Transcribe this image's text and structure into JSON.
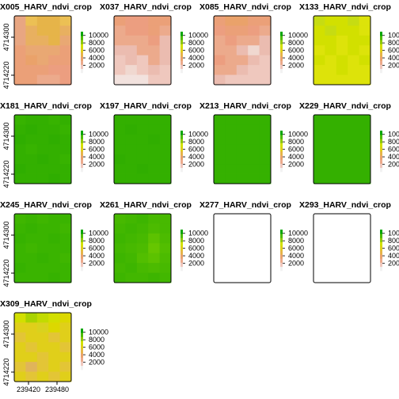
{
  "chart_data": {
    "type": "heatmap",
    "layout": "facet-grid",
    "columns": 4,
    "x_ticks": [
      239420,
      239480
    ],
    "x_tick_labels": [
      "239420",
      "239480"
    ],
    "y_ticks": [
      4714220,
      4714300
    ],
    "y_tick_labels": [
      "4714220",
      "4714300"
    ],
    "legend_ticks": [
      2000,
      4000,
      6000,
      8000,
      10000
    ],
    "legend_tick_labels": [
      "2000",
      "4000",
      "6000",
      "8000",
      "10000"
    ],
    "panels": [
      {
        "title": "X005_HARV_ndvi_crop",
        "grid": [
          [
            "#e8a682",
            "#ecc054",
            "#e6b449",
            "#e6b449",
            "#ecc054"
          ],
          [
            "#e8a682",
            "#e8b060",
            "#e6b449",
            "#e6b449",
            "#e8b060"
          ],
          [
            "#e8a682",
            "#e8b060",
            "#e8b060",
            "#e6b449",
            "#e9a873"
          ],
          [
            "#eba078",
            "#e9a873",
            "#e9a873",
            "#e9a873",
            "#eba078"
          ],
          [
            "#eba078",
            "#eaa26a",
            "#e9a873",
            "#eba078",
            "#eba078"
          ],
          [
            "#eba078",
            "#eba078",
            "#eba078",
            "#ec9e80",
            "#ec9e80"
          ],
          [
            "#eba078",
            "#eba078",
            "#ecaa8c",
            "#ecaa8c",
            "#ec9e80"
          ]
        ]
      },
      {
        "title": "X037_HARV_ndvi_crop",
        "grid": [
          [
            "#eba078",
            "#ec9e80",
            "#ec9e80",
            "#eba078",
            "#eba078"
          ],
          [
            "#ecaa8c",
            "#ec9e80",
            "#ec9e80",
            "#eba078",
            "#ecaa8c"
          ],
          [
            "#ecaa8c",
            "#ecaa8c",
            "#ecaa8c",
            "#ec9e80",
            "#ebbcb0"
          ],
          [
            "#ebbcb0",
            "#ebbcb0",
            "#ecaa8c",
            "#ecaa8c",
            "#ebbcb0"
          ],
          [
            "#efc8be",
            "#ebbcb0",
            "#efc8be",
            "#ecaa8c",
            "#ebbcb0"
          ],
          [
            "#efc8be",
            "#f0d8d0",
            "#efc8be",
            "#ebbcb0",
            "#efc8be"
          ],
          [
            "#f2e2de",
            "#f2e2de",
            "#f2e2de",
            "#efc8be",
            "#efc8be"
          ]
        ]
      },
      {
        "title": "X085_HARV_ndvi_crop",
        "grid": [
          [
            "#eba078",
            "#eaa26a",
            "#eaa26a",
            "#eba078",
            "#eba078"
          ],
          [
            "#ec9e80",
            "#eba078",
            "#eba078",
            "#ec9e80",
            "#ecaa8c"
          ],
          [
            "#ecaa8c",
            "#ec9e80",
            "#ecaa8c",
            "#ecaa8c",
            "#ebbcb0"
          ],
          [
            "#ecaa8c",
            "#ecaa8c",
            "#ebbcb0",
            "#f0d8d0",
            "#ebbcb0"
          ],
          [
            "#ec9e80",
            "#ecaa8c",
            "#ecaa8c",
            "#ebbcb0",
            "#efc8be"
          ],
          [
            "#ecaa8c",
            "#ecaa8c",
            "#ebbcb0",
            "#efc8be",
            "#efc8be"
          ],
          [
            "#ebbcb0",
            "#efc8be",
            "#efc8be",
            "#efc8be",
            "#efc8be"
          ]
        ]
      },
      {
        "title": "X133_HARV_ndvi_crop",
        "grid": [
          [
            "#c6dc12",
            "#d2e000",
            "#d2e000",
            "#c6dc12",
            "#dde30a"
          ],
          [
            "#d2e000",
            "#c6dc12",
            "#d2e000",
            "#d2e000",
            "#dde30a"
          ],
          [
            "#d2e000",
            "#d2e000",
            "#dde30a",
            "#d2e000",
            "#d2e000"
          ],
          [
            "#dde30a",
            "#d2e000",
            "#dde30a",
            "#d2e000",
            "#dde30a"
          ],
          [
            "#d2e000",
            "#dde30a",
            "#d2e000",
            "#dde30a",
            "#d2e000"
          ],
          [
            "#dde30a",
            "#dde30a",
            "#d2e000",
            "#dde30a",
            "#dde30a"
          ],
          [
            "#dde30a",
            "#dde30a",
            "#dde30a",
            "#dde30a",
            "#dde30a"
          ]
        ]
      },
      {
        "title": "X181_HARV_ndvi_crop",
        "grid": [
          [
            "#37b300",
            "#33b000",
            "#33b000",
            "#37b300",
            "#33b000"
          ],
          [
            "#33b000",
            "#2fae00",
            "#33b000",
            "#33b000",
            "#37b300"
          ],
          [
            "#2fae00",
            "#33b000",
            "#33b000",
            "#2fae00",
            "#33b000"
          ],
          [
            "#33b000",
            "#37b300",
            "#33b000",
            "#33b000",
            "#33b000"
          ],
          [
            "#33b000",
            "#33b000",
            "#2fae00",
            "#33b000",
            "#37b300"
          ],
          [
            "#2fae00",
            "#33b000",
            "#33b000",
            "#33b000",
            "#33b000"
          ],
          [
            "#33b000",
            "#33b000",
            "#33b000",
            "#2fae00",
            "#33b000"
          ]
        ]
      },
      {
        "title": "X197_HARV_ndvi_crop",
        "grid": [
          [
            "#33b000",
            "#33b000",
            "#33b000",
            "#33b000",
            "#33b000"
          ],
          [
            "#33b000",
            "#30ae00",
            "#33b000",
            "#33b000",
            "#33b000"
          ],
          [
            "#33b000",
            "#33b000",
            "#33b000",
            "#30ae00",
            "#33b000"
          ],
          [
            "#33b000",
            "#33b000",
            "#33b000",
            "#33b000",
            "#33b000"
          ],
          [
            "#30ae00",
            "#33b000",
            "#33b000",
            "#33b000",
            "#33b000"
          ],
          [
            "#33b000",
            "#33b000",
            "#30ae00",
            "#33b000",
            "#33b000"
          ],
          [
            "#33b000",
            "#33b000",
            "#33b000",
            "#33b000",
            "#33b000"
          ]
        ]
      },
      {
        "title": "X213_HARV_ndvi_crop",
        "grid": [
          [
            "#35b100",
            "#35b100",
            "#35b100",
            "#35b100",
            "#35b100"
          ],
          [
            "#35b100",
            "#35b100",
            "#35b100",
            "#35b100",
            "#35b100"
          ],
          [
            "#35b100",
            "#35b100",
            "#35b100",
            "#35b100",
            "#35b100"
          ],
          [
            "#35b100",
            "#35b100",
            "#35b100",
            "#35b100",
            "#35b100"
          ],
          [
            "#35b100",
            "#35b100",
            "#35b100",
            "#35b100",
            "#35b100"
          ],
          [
            "#35b100",
            "#35b100",
            "#35b100",
            "#35b100",
            "#35b100"
          ],
          [
            "#35b100",
            "#35b100",
            "#35b100",
            "#35b100",
            "#35b100"
          ]
        ]
      },
      {
        "title": "X229_HARV_ndvi_crop",
        "grid": [
          [
            "#34b000",
            "#34b000",
            "#34b000",
            "#34b000",
            "#34b000"
          ],
          [
            "#34b000",
            "#34b000",
            "#34b000",
            "#34b000",
            "#34b000"
          ],
          [
            "#34b000",
            "#34b000",
            "#34b000",
            "#34b000",
            "#34b000"
          ],
          [
            "#34b000",
            "#34b000",
            "#34b000",
            "#34b000",
            "#34b000"
          ],
          [
            "#34b000",
            "#34b000",
            "#34b000",
            "#34b000",
            "#34b000"
          ],
          [
            "#34b000",
            "#34b000",
            "#34b000",
            "#34b000",
            "#34b000"
          ],
          [
            "#34b000",
            "#34b000",
            "#34b000",
            "#34b000",
            "#34b000"
          ]
        ]
      },
      {
        "title": "X245_HARV_ndvi_crop",
        "grid": [
          [
            "#3fb600",
            "#3ab400",
            "#3fb600",
            "#3ab400",
            "#3ab400"
          ],
          [
            "#3ab400",
            "#36b200",
            "#3ab400",
            "#3ab400",
            "#3fb600"
          ],
          [
            "#36b200",
            "#3ab400",
            "#3ab400",
            "#36b200",
            "#3ab400"
          ],
          [
            "#3ab400",
            "#3fb600",
            "#3ab400",
            "#3ab400",
            "#3ab400"
          ],
          [
            "#3ab400",
            "#3ab400",
            "#36b200",
            "#3ab400",
            "#3fb600"
          ],
          [
            "#36b200",
            "#3ab400",
            "#3ab400",
            "#3ab400",
            "#3ab400"
          ],
          [
            "#3ab400",
            "#3ab400",
            "#3ab400",
            "#36b200",
            "#3ab400"
          ]
        ]
      },
      {
        "title": "X261_HARV_ndvi_crop",
        "grid": [
          [
            "#47b900",
            "#42b700",
            "#3db500",
            "#47b900",
            "#47b900"
          ],
          [
            "#42b700",
            "#3db500",
            "#42b700",
            "#4cbb00",
            "#47b900"
          ],
          [
            "#3db500",
            "#42b700",
            "#47b900",
            "#5cc200",
            "#4cbb00"
          ],
          [
            "#42b700",
            "#47b900",
            "#4cbb00",
            "#66c600",
            "#52be00"
          ],
          [
            "#3db500",
            "#42b700",
            "#52be00",
            "#5cc200",
            "#4cbb00"
          ],
          [
            "#42b700",
            "#3db500",
            "#47b900",
            "#4cbb00",
            "#47b900"
          ],
          [
            "#3db500",
            "#42b700",
            "#42b700",
            "#3db500",
            "#42b700"
          ]
        ]
      },
      {
        "title": "X277_HARV_ndvi_crop",
        "grid": []
      },
      {
        "title": "X293_HARV_ndvi_crop",
        "grid": []
      },
      {
        "title": "X309_HARV_ndvi_crop",
        "grid": [
          [
            "#d2df00",
            "#a9d300",
            "#c2db00",
            "#d2df00",
            "#dcd800"
          ],
          [
            "#e0cf1a",
            "#e0cf1a",
            "#d9d21e",
            "#dcd800",
            "#e0cf1a"
          ],
          [
            "#e3c536",
            "#e0cf1a",
            "#e0cf1a",
            "#e3c536",
            "#e0cf1a"
          ],
          [
            "#e0cf1a",
            "#e3c536",
            "#e0cf1a",
            "#e0cf1a",
            "#e3c536"
          ],
          [
            "#e0cf1a",
            "#e0cf1a",
            "#e3c536",
            "#e0cf1a",
            "#e0cf1a"
          ],
          [
            "#e3c536",
            "#e0b45a",
            "#e3c536",
            "#e0cf1a",
            "#e3c536"
          ],
          [
            "#e0cf1a",
            "#e3c536",
            "#e0cf1a",
            "#e3c536",
            "#e0cf1a"
          ]
        ]
      }
    ],
    "legend_colors": [
      "#f2f2f2",
      "#efc8be",
      "#ecaa8c",
      "#eaa26a",
      "#e6b449",
      "#e0cf1a",
      "#d2e000",
      "#8cc800",
      "#4cbb00",
      "#00a600"
    ]
  }
}
